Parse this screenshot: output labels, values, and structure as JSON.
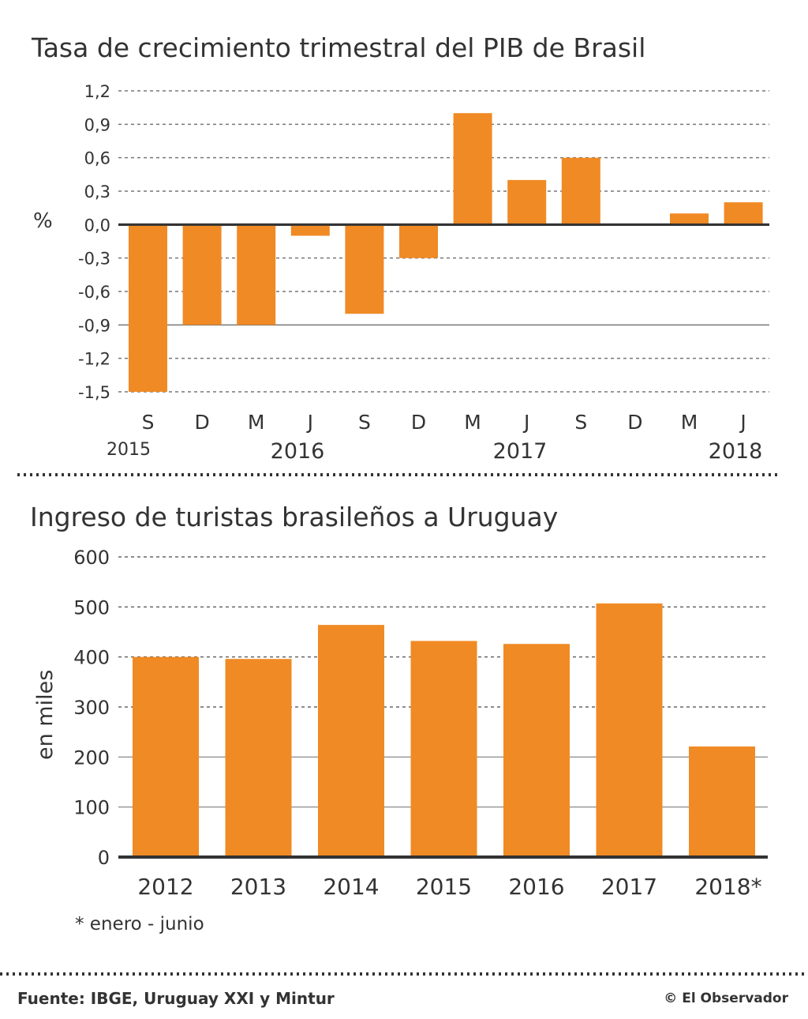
{
  "colors": {
    "bar": "#f08a24",
    "text": "#333333",
    "grid": "#666666"
  },
  "chart_data": [
    {
      "type": "bar",
      "title": "Tasa de crecimiento trimestral del PIB de Brasil",
      "ylabel": "%",
      "ylim": [
        -1.5,
        1.2
      ],
      "yticks": [
        "1,2",
        "0,9",
        "0,6",
        "0,3",
        "0,0",
        "-0,3",
        "-0,6",
        "-0,9",
        "-1,2",
        "-1,5"
      ],
      "ytick_values": [
        1.2,
        0.9,
        0.6,
        0.3,
        0.0,
        -0.3,
        -0.6,
        -0.9,
        -1.2,
        -1.5
      ],
      "categories": [
        "S",
        "D",
        "M",
        "J",
        "S",
        "D",
        "M",
        "J",
        "S",
        "D",
        "M",
        "J"
      ],
      "years": [
        {
          "label": "2015",
          "index": 0
        },
        {
          "label": "2016",
          "index": 3
        },
        {
          "label": "2017",
          "index": 7
        },
        {
          "label": "2018",
          "index": 11
        }
      ],
      "values": [
        -1.5,
        -0.9,
        -0.9,
        -0.1,
        -0.8,
        -0.3,
        1.0,
        0.4,
        0.6,
        0.0,
        0.1,
        0.2
      ]
    },
    {
      "type": "bar",
      "title": "Ingreso de turistas brasileños a Uruguay",
      "ylabel": "en miles",
      "ylim": [
        0,
        600
      ],
      "yticks": [
        "600",
        "500",
        "400",
        "300",
        "200",
        "100",
        "0"
      ],
      "ytick_values": [
        600,
        500,
        400,
        300,
        200,
        100,
        0
      ],
      "categories": [
        "2012",
        "2013",
        "2014",
        "2015",
        "2016",
        "2017",
        "2018*"
      ],
      "values": [
        400,
        396,
        464,
        432,
        426,
        507,
        221
      ],
      "note": "* enero - junio"
    }
  ],
  "footer": {
    "source": "Fuente: IBGE, Uruguay XXI y Mintur",
    "credit": "© El Observador"
  }
}
